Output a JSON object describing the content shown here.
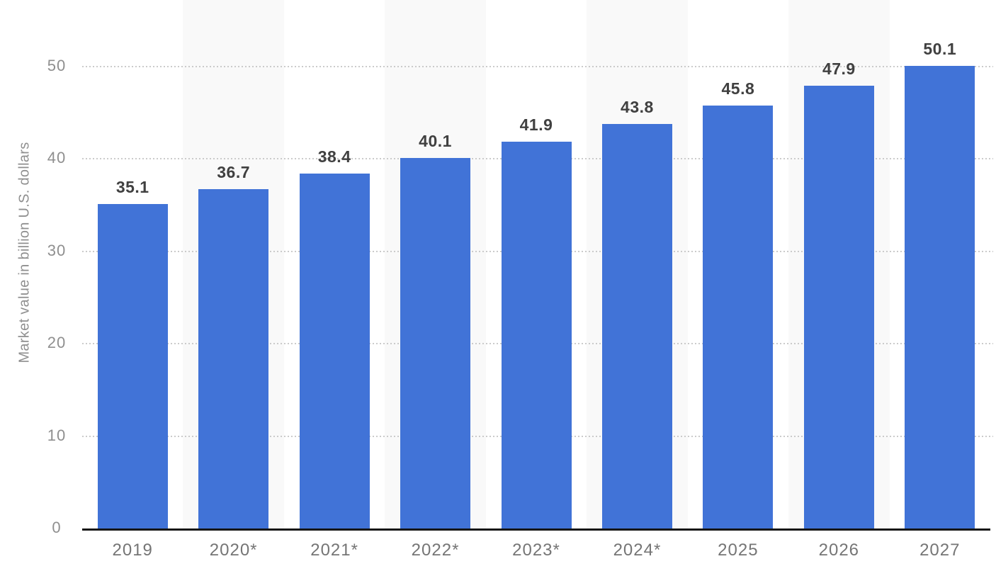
{
  "chart_data": {
    "type": "bar",
    "categories": [
      "2019",
      "2020*",
      "2021*",
      "2022*",
      "2023*",
      "2024*",
      "2025",
      "2026",
      "2027"
    ],
    "values": [
      35.1,
      36.7,
      38.4,
      40.1,
      41.9,
      43.8,
      45.8,
      47.9,
      50.1
    ],
    "value_labels": [
      "35.1",
      "36.7",
      "38.4",
      "40.1",
      "41.9",
      "43.8",
      "45.8",
      "47.9",
      "50.1"
    ],
    "title": "",
    "xlabel": "",
    "ylabel": "Market value in billion U.S. dollars",
    "ylim": [
      0,
      55
    ],
    "yticks": [
      0,
      10,
      20,
      30,
      40,
      50
    ],
    "grid": true,
    "gridline_style": "dotted",
    "legend": "none",
    "bar_color": "#4173d7",
    "plot_band_color": "#f9f9f9",
    "plot_band_columns": [
      1,
      3,
      5,
      7
    ],
    "gridline_color": "#cbcbcb",
    "axis_line_color": "#161616",
    "value_label_color": "#404040",
    "x_tick_color": "#757575",
    "y_tick_color": "#8f8f8f"
  }
}
